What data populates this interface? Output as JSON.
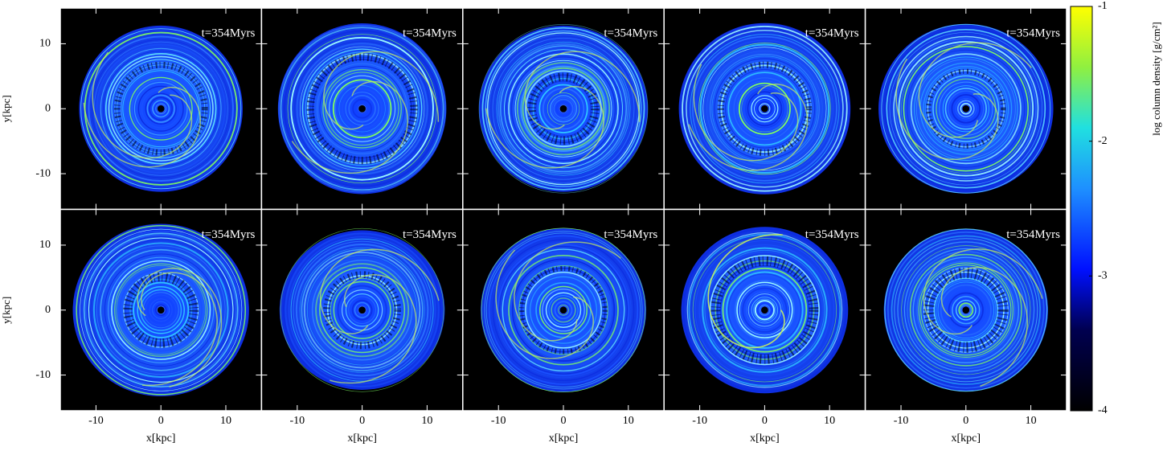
{
  "chart_data": {
    "type": "image-grid",
    "panels": [
      {
        "label": "t=354Myrs"
      },
      {
        "label": "t=354Myrs"
      },
      {
        "label": "t=354Myrs"
      },
      {
        "label": "t=354Myrs"
      },
      {
        "label": "t=354Myrs"
      },
      {
        "label": "t=354Myrs"
      },
      {
        "label": "t=354Myrs"
      },
      {
        "label": "t=354Myrs"
      },
      {
        "label": "t=354Myrs"
      },
      {
        "label": "t=354Myrs"
      }
    ],
    "columns": 5,
    "xlabel": "x[kpc]",
    "ylabel": "y[kpc]",
    "xlim": [
      -15.5,
      15.5
    ],
    "ylim": [
      -15.5,
      15.5
    ],
    "xticks": [
      -10,
      0,
      10
    ],
    "yticks": [
      -10,
      0,
      10
    ],
    "colorbar": {
      "label": "log column density [g/cm²]",
      "lim": [
        -4,
        -1
      ],
      "ticks": [
        -1,
        -2,
        -3,
        -4
      ]
    }
  }
}
